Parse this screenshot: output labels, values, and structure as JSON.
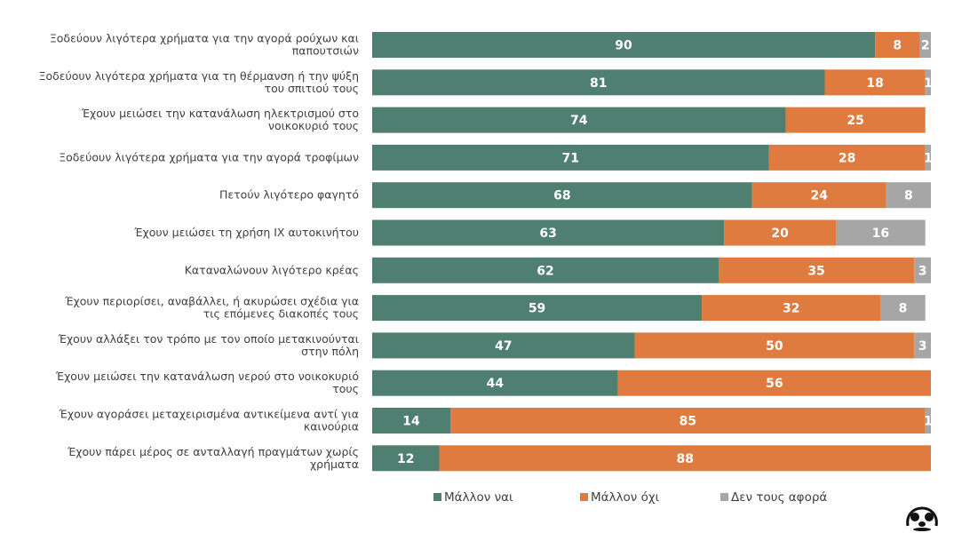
{
  "chart_data": {
    "type": "bar",
    "orientation": "horizontal",
    "stacked": true,
    "categories": [
      "Ξοδεύουν λιγότερα χρήματα για την αγορά ρούχων και παπουτσιών",
      "Ξοδεύουν λιγότερα χρήματα για τη θέρμανση ή την ψύξη του σπιτιού τους",
      "Έχουν μειώσει την κατανάλωση ηλεκτρισμού στο νοικοκυριό τους",
      "Ξοδεύουν λιγότερα χρήματα για την αγορά τροφίμων",
      "Πετούν λιγότερο φαγητό",
      "Έχουν μειώσει τη χρήση ΙΧ αυτοκινήτου",
      "Καταναλώνουν λιγότερο κρέας",
      "Έχουν περιορίσει, αναβάλλει, ή ακυρώσει σχέδια για τις επόμενες διακοπές τους",
      "Έχουν αλλάξει τον τρόπο με τον οποίο μετακινούνται στην πόλη",
      "Έχουν μειώσει την κατανάλωση νερού στο νοικοκυριό τους",
      "Έχουν αγοράσει μεταχειρισμένα αντικείμενα αντί για καινούρια",
      "Έχουν πάρει μέρος σε ανταλλαγή πραγμάτων χωρίς χρήματα"
    ],
    "series": [
      {
        "name": "Μάλλον ναι",
        "color": "#4f7f70",
        "values": [
          90,
          81,
          74,
          71,
          68,
          63,
          62,
          59,
          47,
          44,
          14,
          12
        ]
      },
      {
        "name": "Μάλλον όχι",
        "color": "#e07b3f",
        "values": [
          8,
          18,
          25,
          28,
          24,
          20,
          35,
          32,
          50,
          56,
          85,
          88
        ]
      },
      {
        "name": "Δεν τους αφορά",
        "color": "#a6a6a6",
        "values": [
          2,
          1,
          0,
          1,
          8,
          16,
          3,
          8,
          3,
          0,
          1,
          0
        ]
      }
    ],
    "value_labels": [
      [
        "90",
        "8",
        "2"
      ],
      [
        "81",
        "18",
        "1"
      ],
      [
        "74",
        "25",
        ""
      ],
      [
        "71",
        "28",
        "1"
      ],
      [
        "68",
        "24",
        "8"
      ],
      [
        "63",
        "20",
        "16"
      ],
      [
        "62",
        "35",
        "3"
      ],
      [
        "59",
        "32",
        "8"
      ],
      [
        "47",
        "50",
        "3"
      ],
      [
        "44",
        "56",
        ""
      ],
      [
        "14",
        "85",
        "1"
      ],
      [
        "12",
        "88",
        ""
      ]
    ],
    "xlim": [
      0,
      100
    ],
    "legend_position": "bottom"
  }
}
